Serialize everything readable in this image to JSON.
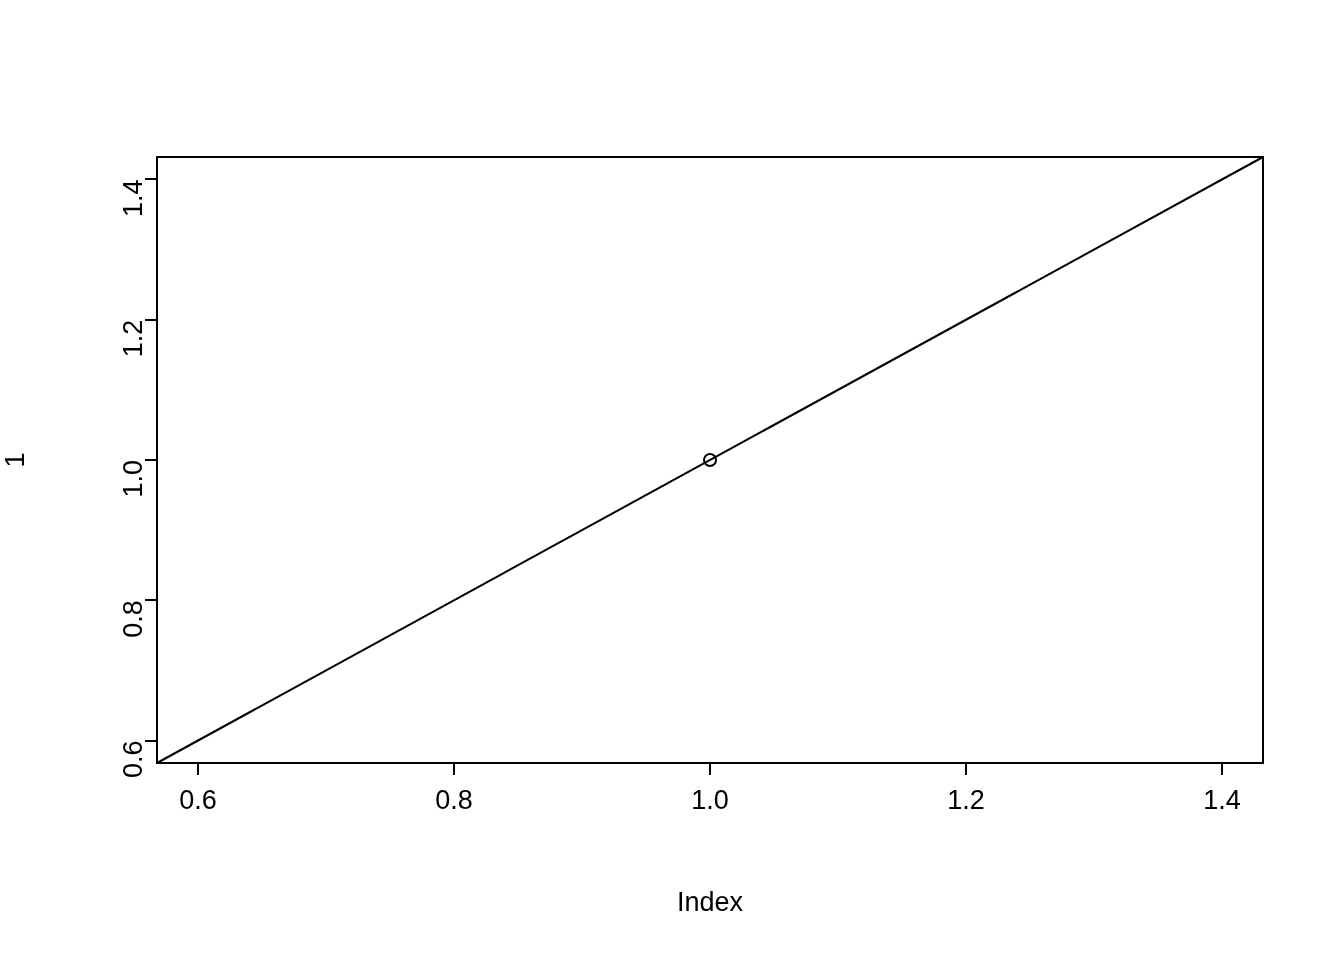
{
  "chart_data": {
    "type": "scatter",
    "xlabel": "Index",
    "ylabel": "1",
    "series": [
      {
        "color": "#000000",
        "marker": "circle",
        "x": [
          1.0
        ],
        "values": [
          1.0
        ]
      },
      {
        "type": "line",
        "color": "#000000",
        "marker": "none",
        "line_style": "solid",
        "x": [
          0.568,
          1.432
        ],
        "values": [
          0.568,
          1.432
        ]
      }
    ],
    "xlim": [
      0.568,
      1.432
    ],
    "ylim": [
      0.568,
      1.432
    ],
    "xticks": [
      0.6,
      0.8,
      {
        "value": 1,
        "label": "1.0"
      },
      1.2,
      1.4
    ],
    "yticks": [
      0.6,
      0.8,
      {
        "value": 1,
        "label": "1.0"
      },
      1.2,
      1.4
    ]
  }
}
